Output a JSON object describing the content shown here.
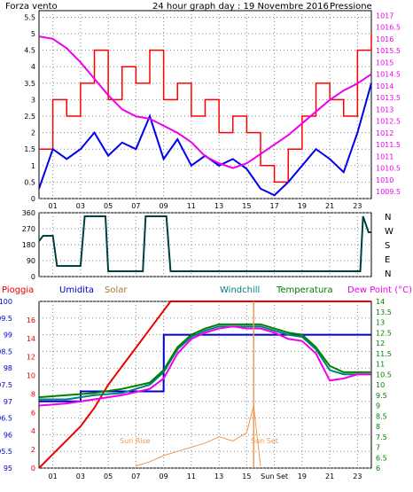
{
  "colors": {
    "wind": "#ff0000",
    "gust": "#0000ee",
    "pressure": "#ee00ee",
    "winddir": "#004040",
    "rain": "#ee0000",
    "humidity": "#0000cc",
    "solar": "#ee9955",
    "windchill": "#008080",
    "temperature": "#008000",
    "dewpoint": "#ee00ee",
    "grid": "#888888",
    "axis": "#000000"
  },
  "header": {
    "left": "Forza vento",
    "title": "24 hour graph day : 19 Novembre 2016",
    "right": "Pressione"
  },
  "x_ticks": [
    "01",
    "03",
    "05",
    "07",
    "09",
    "11",
    "13",
    "15",
    "17",
    "19",
    "21",
    "23"
  ],
  "compass": [
    "N",
    "W",
    "S",
    "E",
    "N"
  ],
  "dir_ticks": [
    "360",
    "270",
    "180",
    "90",
    "0"
  ],
  "bottom_legend": {
    "rain": "Pioggia",
    "humidity": "Umidita",
    "solar": "Solar",
    "windchill": "Windchill",
    "temperature": "Temperatura",
    "dewpoint": "Dew Point (°C)"
  },
  "annotations": {
    "sunrise": "Sun Rise",
    "sunset": "Sun Set",
    "sunset_tick": "Sun Set"
  },
  "chart_data": [
    {
      "type": "line",
      "title": "24 hour graph day : 19 Novembre 2016",
      "x_range": [
        0,
        24
      ],
      "y_left_ticks": [
        "5.5",
        "5",
        "4.5",
        "4",
        "3.5",
        "3",
        "2.5",
        "2",
        "1.5",
        "1",
        "0.5",
        "0"
      ],
      "y_right_ticks": [
        "1017",
        "1016.5",
        "1016",
        "1015.5",
        "1015",
        "1014.5",
        "1014",
        "1013.5",
        "1013",
        "1012.5",
        "1012",
        "1011.5",
        "1011",
        "1010.5",
        "1010",
        "1009.5"
      ],
      "ylim_left": [
        0,
        5.7
      ],
      "ylim_right": [
        1009.2,
        1017.2
      ],
      "series": [
        {
          "name": "Forza vento",
          "axis": "left",
          "x": [
            0,
            1,
            2,
            3,
            4,
            5,
            6,
            7,
            8,
            9,
            10,
            11,
            12,
            13,
            14,
            15,
            16,
            17,
            18,
            19,
            20,
            21,
            22,
            23,
            24
          ],
          "values": [
            1.5,
            3.0,
            2.5,
            3.5,
            4.5,
            3.0,
            4.0,
            3.5,
            4.5,
            3.0,
            3.5,
            2.5,
            3.0,
            2.0,
            2.5,
            2.0,
            1.0,
            0.5,
            1.5,
            2.5,
            3.5,
            3.0,
            2.5,
            4.5,
            5.0
          ]
        },
        {
          "name": "gust",
          "axis": "left",
          "x": [
            0,
            1,
            2,
            3,
            4,
            5,
            6,
            7,
            8,
            9,
            10,
            11,
            12,
            13,
            14,
            15,
            16,
            17,
            18,
            19,
            20,
            21,
            22,
            23,
            24
          ],
          "values": [
            0.3,
            1.5,
            1.2,
            1.5,
            2.0,
            1.3,
            1.7,
            1.5,
            2.5,
            1.2,
            1.8,
            1.0,
            1.3,
            1.0,
            1.2,
            0.9,
            0.3,
            0.1,
            0.5,
            1.0,
            1.5,
            1.2,
            0.8,
            2.0,
            3.5
          ]
        },
        {
          "name": "Pressione",
          "axis": "right",
          "x": [
            0,
            1,
            2,
            3,
            4,
            5,
            6,
            7,
            8,
            9,
            10,
            11,
            12,
            13,
            14,
            15,
            16,
            17,
            18,
            19,
            20,
            21,
            22,
            23,
            24
          ],
          "values": [
            1016.1,
            1016.0,
            1015.6,
            1015.0,
            1014.3,
            1013.6,
            1013.0,
            1012.7,
            1012.6,
            1012.3,
            1012.0,
            1011.6,
            1011.0,
            1010.7,
            1010.5,
            1010.7,
            1011.1,
            1011.5,
            1011.9,
            1012.4,
            1012.9,
            1013.4,
            1013.8,
            1014.1,
            1014.5
          ]
        }
      ]
    },
    {
      "type": "line",
      "title": "",
      "x_range": [
        0,
        24
      ],
      "ylim": [
        0,
        360
      ],
      "series": [
        {
          "name": "",
          "x": [
            0,
            0.3,
            1,
            1.3,
            3,
            3.3,
            4.8,
            5,
            7.5,
            7.7,
            9.2,
            9.5,
            23.2,
            23.4,
            23.8,
            24
          ],
          "values": [
            200,
            230,
            230,
            60,
            60,
            340,
            340,
            30,
            30,
            340,
            340,
            30,
            30,
            340,
            250,
            250
          ]
        }
      ]
    },
    {
      "type": "line",
      "title": "",
      "x_range": [
        0,
        24
      ],
      "y_left_ticks": [
        "100",
        "99.5",
        "99",
        "98.5",
        "98",
        "97.5",
        "97",
        "96.5",
        "96",
        "95.5",
        "95"
      ],
      "y_mid_ticks": [
        "16",
        "14",
        "12",
        "10",
        "8",
        "6",
        "4",
        "2",
        "0"
      ],
      "y_right_ticks": [
        "14",
        "13.5",
        "13",
        "12.5",
        "12",
        "11.5",
        "11",
        "10.5",
        "10",
        "9.5",
        "9",
        "8.5",
        "8",
        "7.5",
        "7",
        "6.5",
        "6"
      ],
      "ylim_left": [
        95,
        100
      ],
      "ylim_right": [
        6,
        14
      ],
      "series": [
        {
          "name": "Pioggia",
          "axis": "mid",
          "x": [
            0,
            1,
            2,
            3,
            4,
            5,
            6,
            7,
            8,
            9,
            9.5,
            10,
            24
          ],
          "values": [
            0,
            1.5,
            3,
            4.5,
            6.5,
            9,
            11,
            13,
            15,
            17,
            18,
            18,
            18
          ]
        },
        {
          "name": "Umidita",
          "axis": "left",
          "x": [
            0,
            3,
            3.01,
            6,
            9,
            9.01,
            10,
            15,
            16,
            17,
            19,
            21,
            22,
            24
          ],
          "values": [
            97,
            97,
            97.3,
            97.3,
            98,
            99,
            99,
            99,
            99,
            99,
            99,
            99,
            99,
            99
          ]
        },
        {
          "name": "Solar",
          "axis": "right",
          "x": [
            7,
            8,
            9,
            10,
            11,
            12,
            13,
            14,
            15,
            15.5,
            16
          ],
          "values": [
            6.1,
            6.3,
            6.6,
            6.8,
            7.0,
            7.2,
            7.5,
            7.3,
            7.7,
            9.0,
            6.1
          ]
        },
        {
          "name": "Windchill",
          "axis": "right",
          "x": [
            0,
            2,
            4,
            6,
            8,
            9,
            10,
            11,
            12,
            13,
            14,
            15,
            16,
            17,
            18,
            19,
            20,
            21,
            22,
            23,
            24
          ],
          "values": [
            9.3,
            9.3,
            9.5,
            9.6,
            10.0,
            10.6,
            11.7,
            12.3,
            12.6,
            12.8,
            12.8,
            12.8,
            12.8,
            12.6,
            12.4,
            12.3,
            11.7,
            10.7,
            10.5,
            10.5,
            10.5
          ]
        },
        {
          "name": "Temperatura",
          "axis": "right",
          "x": [
            0,
            2,
            4,
            6,
            8,
            9,
            10,
            11,
            12,
            13,
            14,
            15,
            16,
            17,
            18,
            19,
            20,
            21,
            22,
            23,
            24
          ],
          "values": [
            9.4,
            9.5,
            9.6,
            9.8,
            10.1,
            10.7,
            11.8,
            12.4,
            12.7,
            12.9,
            12.9,
            12.9,
            12.9,
            12.7,
            12.5,
            12.4,
            11.8,
            10.9,
            10.6,
            10.6,
            10.6
          ]
        },
        {
          "name": "Dew Point (°C)",
          "axis": "right",
          "x": [
            0,
            2,
            4,
            6,
            8,
            9,
            10,
            11,
            12,
            13,
            14,
            15,
            16,
            17,
            18,
            19,
            20,
            21,
            22,
            23,
            24
          ],
          "values": [
            9.0,
            9.1,
            9.3,
            9.5,
            9.8,
            10.3,
            11.5,
            12.2,
            12.5,
            12.7,
            12.8,
            12.7,
            12.7,
            12.5,
            12.2,
            12.1,
            11.5,
            10.2,
            10.3,
            10.5,
            10.5
          ]
        }
      ]
    }
  ]
}
